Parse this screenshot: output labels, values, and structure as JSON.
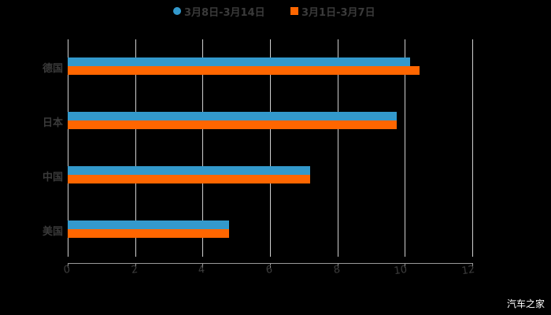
{
  "chart_data": {
    "type": "bar",
    "orientation": "horizontal",
    "title": "",
    "categories": [
      "德国",
      "日本",
      "中国",
      "美国"
    ],
    "series": [
      {
        "name": "3月8日-3月14日",
        "color": "#3399cc",
        "values": [
          10.16,
          9.76,
          7.19,
          4.79
        ]
      },
      {
        "name": "3月1日-3月7日",
        "color": "#ff6600",
        "values": [
          10.44,
          9.76,
          7.19,
          4.79
        ]
      }
    ],
    "xlabel": "",
    "ylabel": "",
    "xlim": [
      0,
      12
    ],
    "xticks": [
      "0",
      "2",
      "4",
      "6",
      "8",
      "10",
      "12"
    ],
    "grid": true,
    "legend_position": "top"
  },
  "legend": {
    "series_1": "3月8日-3月14日",
    "series_2": "3月1日-3月7日"
  },
  "colors": {
    "series_1": "#3399cc",
    "series_2": "#ff6600",
    "background": "#000000"
  },
  "watermark": "汽车之家"
}
